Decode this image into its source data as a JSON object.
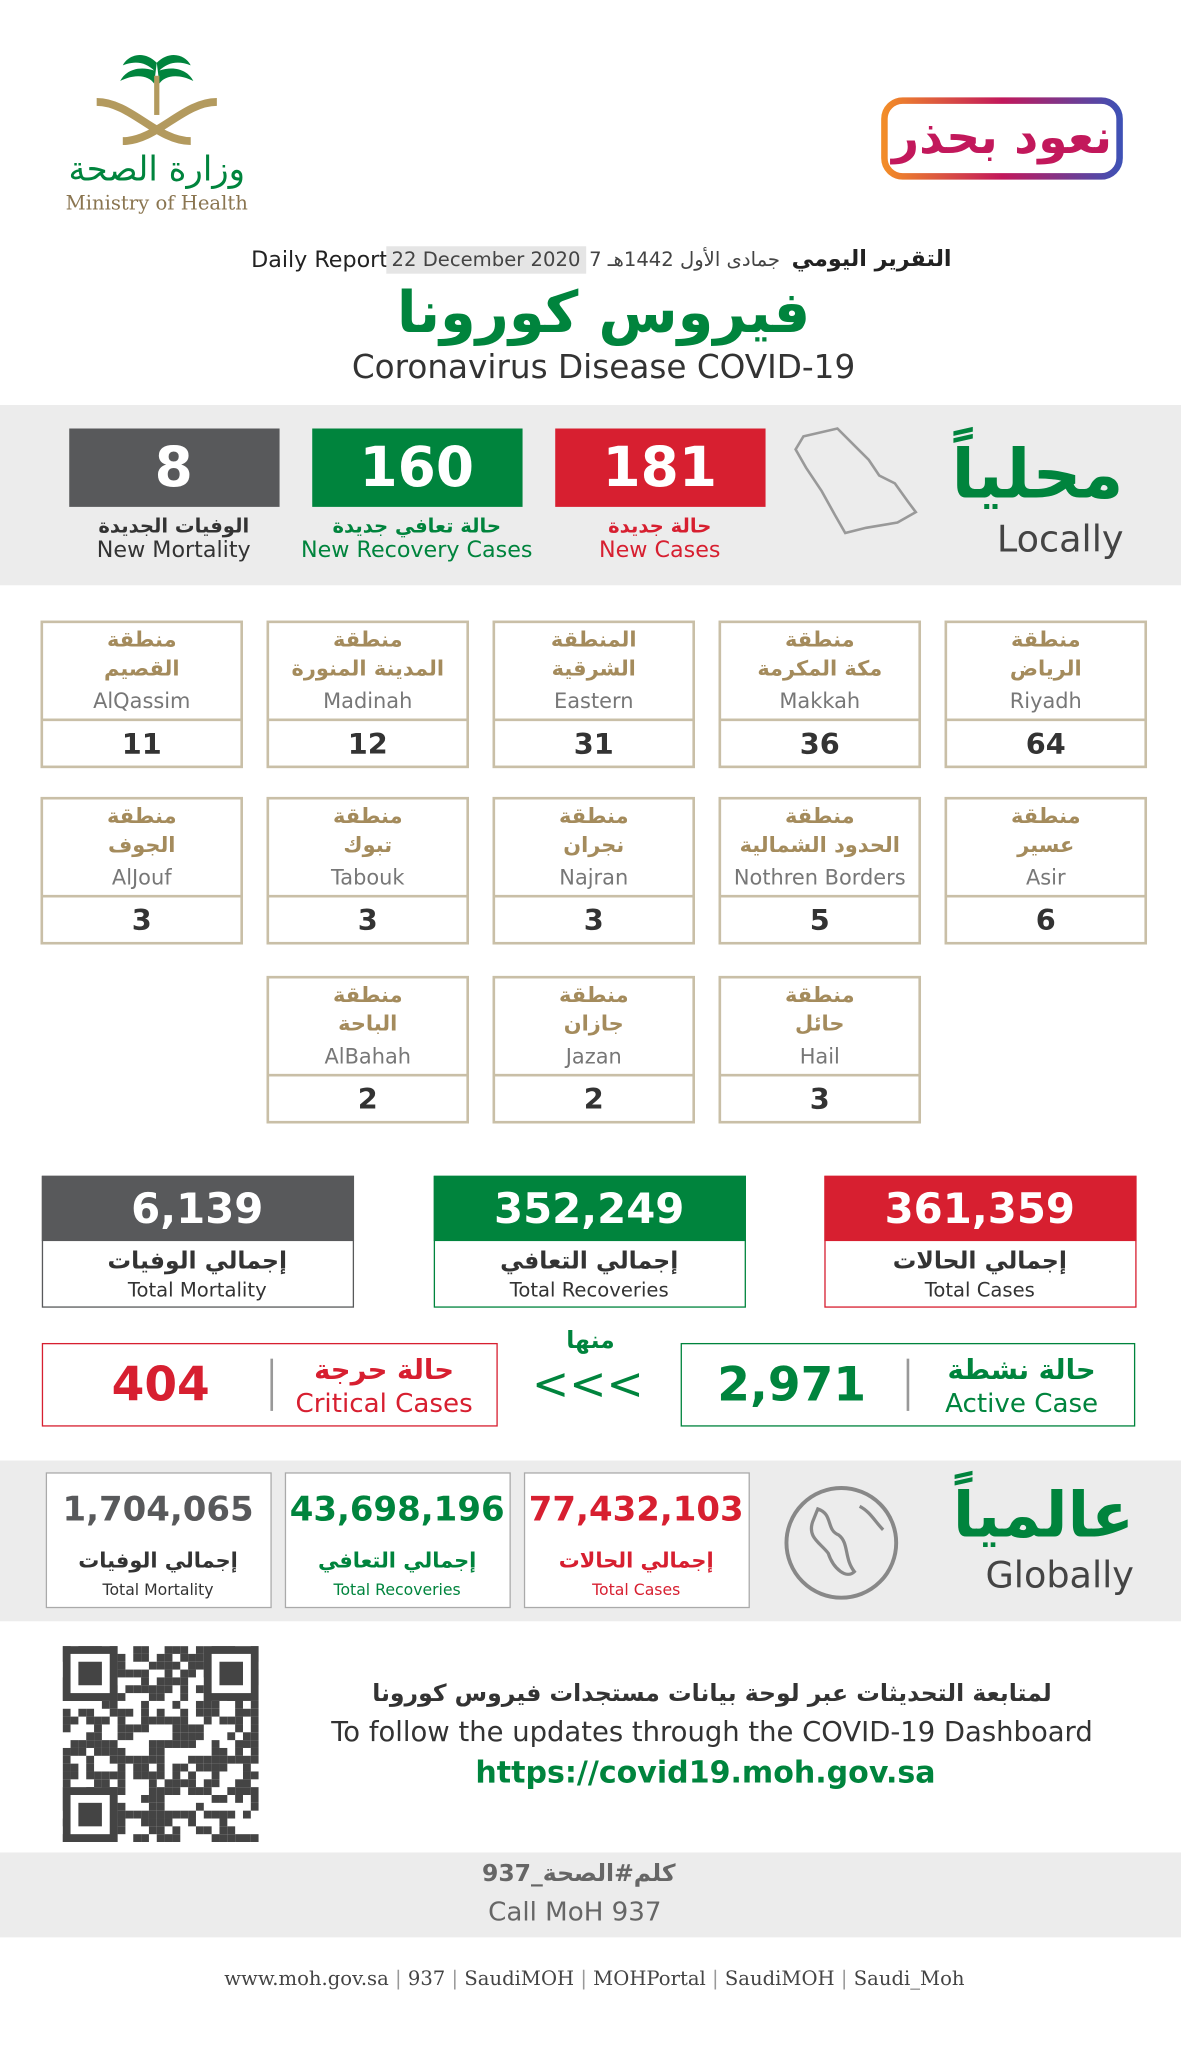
{
  "logo": {
    "name_ar": "وزارة الصحة",
    "name_en": "Ministry of Health"
  },
  "badge": "نعود بحذر",
  "header": {
    "report_ar": "التقرير اليومي",
    "date_hijri": "7 جمادى الأول 1442هـ",
    "date": "22 December 2020",
    "report_en": "Daily Report",
    "title_ar": "فيروس كورونا",
    "title_en": "Coronavirus Disease COVID-19"
  },
  "locally": {
    "title_ar": "محلياً",
    "title_en": "Locally",
    "stats": [
      {
        "value": "181",
        "label_ar": "حالة جديدة",
        "label_en": "New Cases"
      },
      {
        "value": "160",
        "label_ar": "حالة تعافي جديدة",
        "label_en": "New Recovery Cases"
      },
      {
        "value": "8",
        "label_ar": "الوفيات الجديدة",
        "label_en": "New Mortality"
      }
    ]
  },
  "regions": [
    {
      "prefix": "منطقة",
      "name_ar": "الرياض",
      "name_en": "Riyadh",
      "value": "64"
    },
    {
      "prefix": "منطقة",
      "name_ar": "مكة المكرمة",
      "name_en": "Makkah",
      "value": "36"
    },
    {
      "prefix": "المنطقة",
      "name_ar": "الشرقية",
      "name_en": "Eastern",
      "value": "31"
    },
    {
      "prefix": "منطقة",
      "name_ar": "المدينة المنورة",
      "name_en": "Madinah",
      "value": "12"
    },
    {
      "prefix": "منطقة",
      "name_ar": "القصيم",
      "name_en": "AlQassim",
      "value": "11"
    },
    {
      "prefix": "منطقة",
      "name_ar": "عسير",
      "name_en": "Asir",
      "value": "6"
    },
    {
      "prefix": "منطقة",
      "name_ar": "الحدود الشمالية",
      "name_en": "Nothren Borders",
      "value": "5"
    },
    {
      "prefix": "منطقة",
      "name_ar": "نجران",
      "name_en": "Najran",
      "value": "3"
    },
    {
      "prefix": "منطقة",
      "name_ar": "تبوك",
      "name_en": "Tabouk",
      "value": "3"
    },
    {
      "prefix": "منطقة",
      "name_ar": "الجوف",
      "name_en": "AlJouf",
      "value": "3"
    },
    {
      "prefix": "منطقة",
      "name_ar": "حائل",
      "name_en": "Hail",
      "value": "3"
    },
    {
      "prefix": "منطقة",
      "name_ar": "جازان",
      "name_en": "Jazan",
      "value": "2"
    },
    {
      "prefix": "منطقة",
      "name_ar": "الباحة",
      "name_en": "AlBahah",
      "value": "2"
    }
  ],
  "totals": [
    {
      "value": "361,359",
      "label_ar": "إجمالي الحالات",
      "label_en": "Total Cases"
    },
    {
      "value": "352,249",
      "label_ar": "إجمالي التعافي",
      "label_en": "Total Recoveries"
    },
    {
      "value": "6,139",
      "label_ar": "إجمالي الوفيات",
      "label_en": "Total Mortality"
    }
  ],
  "active": {
    "value": "2,971",
    "label_ar": "حالة نشطة",
    "label_en": "Active Case"
  },
  "of_which": {
    "label_ar": "منها",
    "arrows": "<<<"
  },
  "critical": {
    "value": "404",
    "label_ar": "حالة حرجة",
    "label_en": "Critical Cases"
  },
  "globally": {
    "title_ar": "عالمياً",
    "title_en": "Globally",
    "stats": [
      {
        "value": "77,432,103",
        "label_ar": "إجمالي الحالات",
        "label_en": "Total Cases"
      },
      {
        "value": "43,698,196",
        "label_ar": "إجمالي التعافي",
        "label_en": "Total Recoveries"
      },
      {
        "value": "1,704,065",
        "label_ar": "إجمالي الوفيات",
        "label_en": "Total Mortality"
      }
    ]
  },
  "dashboard": {
    "text_ar": "لمتابعة التحديثات عبر لوحة بيانات مستجدات فيروس كورونا",
    "text_en": "To follow the updates through the COVID-19 Dashboard",
    "url": "https://covid19.moh.gov.sa"
  },
  "call": {
    "text_ar": "كلم#الصحة_937",
    "text_en": "Call MoH 937"
  },
  "social": [
    "www.moh.gov.sa",
    "937",
    "SaudiMOH",
    "MOHPortal",
    "SaudiMOH",
    "Saudi_Moh"
  ]
}
